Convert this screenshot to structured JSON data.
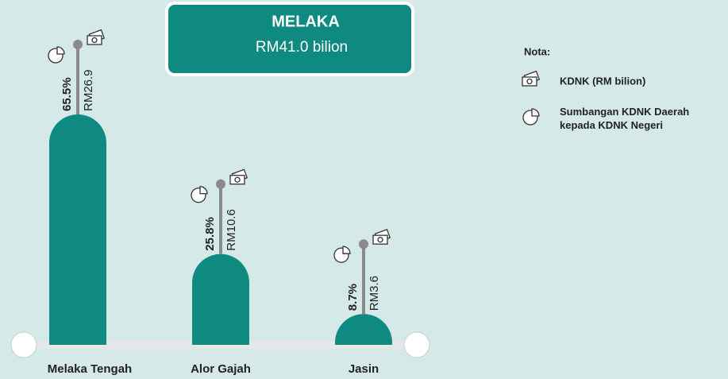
{
  "chart_data": {
    "type": "bar",
    "title": "MELAKA",
    "subtitle": "RM41.0 bilion",
    "legend_title": "Nota:",
    "categories": [
      "Melaka Tengah",
      "Alor Gajah",
      "Jasin"
    ],
    "series": [
      {
        "name": "KDNK (RM bilion)",
        "color": "#0f8a80",
        "values": [
          26.9,
          10.6,
          3.6
        ],
        "value_labels": [
          "RM26.9",
          "RM10.6",
          "RM3.6"
        ]
      },
      {
        "name": "Sumbangan KDNK Daerah kepada KDNK Negeri",
        "values": [
          65.5,
          25.8,
          8.7
        ],
        "value_labels": [
          "65.5%",
          "25.8%",
          "8.7%"
        ]
      }
    ]
  }
}
